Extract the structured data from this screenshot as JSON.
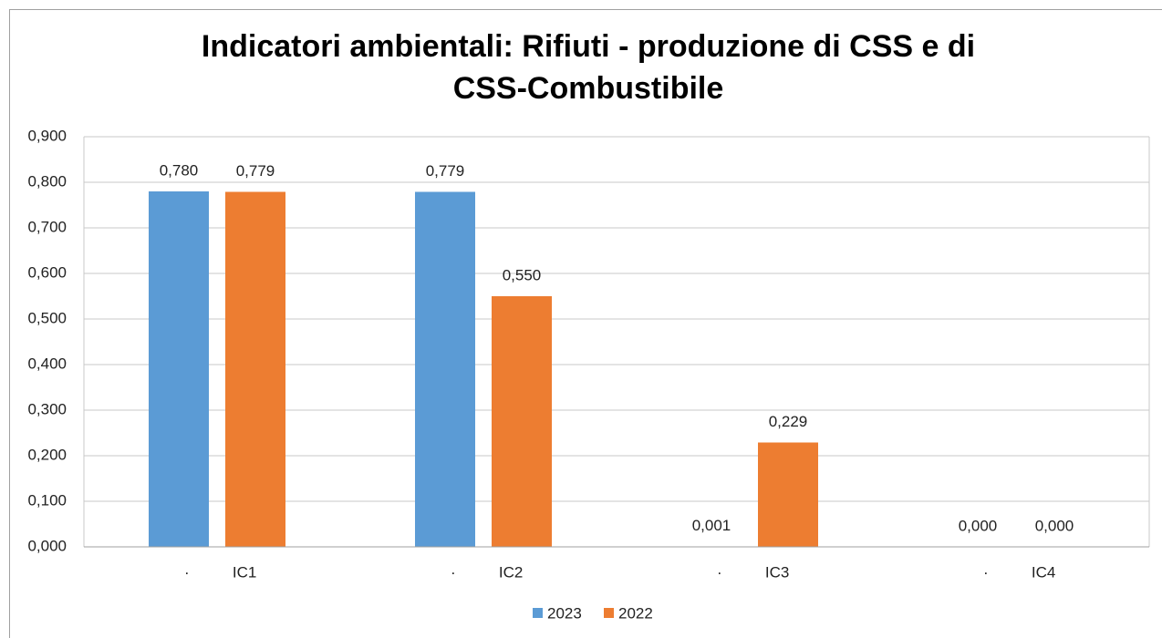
{
  "chart_data": {
    "type": "bar",
    "title": "Indicatori ambientali: Rifiuti - produzione di CSS e di CSS-Combustibile",
    "categories": [
      "·          IC1",
      "·          IC2",
      "·          IC3",
      "·          IC4"
    ],
    "series": [
      {
        "name": "2023",
        "color": "#5b9bd5",
        "values": [
          0.78,
          0.779,
          0.001,
          0.0
        ],
        "value_labels": [
          "0,780",
          "0,779",
          "0,001",
          "0,000"
        ]
      },
      {
        "name": "2022",
        "color": "#ed7d31",
        "values": [
          0.779,
          0.55,
          0.229,
          0.0
        ],
        "value_labels": [
          "0,779",
          "0,550",
          "0,229",
          "0,000"
        ]
      }
    ],
    "ylim": [
      0,
      0.9
    ],
    "yticks": [
      {
        "value": 0,
        "label": "0,000"
      },
      {
        "value": 0.1,
        "label": "0,100"
      },
      {
        "value": 0.2,
        "label": "0,200"
      },
      {
        "value": 0.3,
        "label": "0,300"
      },
      {
        "value": 0.4,
        "label": "0,400"
      },
      {
        "value": 0.5,
        "label": "0,500"
      },
      {
        "value": 0.6,
        "label": "0,600"
      },
      {
        "value": 0.7,
        "label": "0,700"
      },
      {
        "value": 0.8,
        "label": "0,800"
      },
      {
        "value": 0.9,
        "label": "0,900"
      }
    ],
    "grid": true,
    "legend": "bottom"
  }
}
